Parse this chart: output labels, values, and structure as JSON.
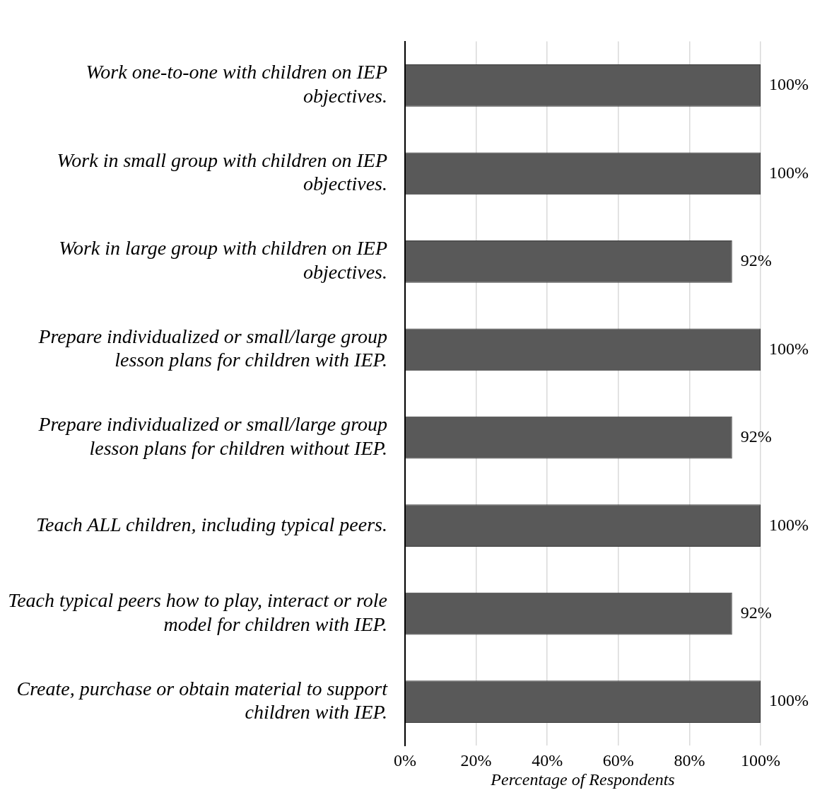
{
  "chart_data": {
    "type": "bar",
    "orientation": "horizontal",
    "categories": [
      "Work one-to-one with children on IEP objectives.",
      "Work in small group with children on IEP objectives.",
      "Work in large group with children on IEP objectives.",
      "Prepare individualized or small/large group lesson plans for children with IEP.",
      "Prepare individualized or small/large group lesson plans for children without IEP.",
      "Teach ALL children, including typical peers.",
      "Teach typical peers how to play, interact or role model for children with IEP.",
      "Create, purchase or obtain material to support children with IEP."
    ],
    "values": [
      100,
      100,
      92,
      100,
      92,
      100,
      92,
      100
    ],
    "value_labels": [
      "100%",
      "100%",
      "92%",
      "100%",
      "92%",
      "100%",
      "92%",
      "100%"
    ],
    "color": "#595959",
    "xlabel": "Percentage of Respondents",
    "xlim": [
      0,
      100
    ],
    "xticks": [
      {
        "value": 0,
        "label": "0%"
      },
      {
        "value": 20,
        "label": "20%"
      },
      {
        "value": 40,
        "label": "40%"
      },
      {
        "value": 60,
        "label": "60%"
      },
      {
        "value": 80,
        "label": "80%"
      },
      {
        "value": 100,
        "label": "100%"
      }
    ],
    "grid": "x",
    "legend": false
  }
}
